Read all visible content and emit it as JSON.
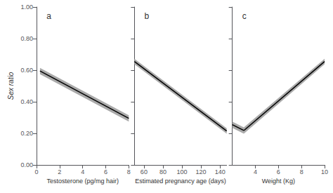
{
  "chart_data": [
    {
      "type": "line",
      "title": "a",
      "xlabel": "Testosterone (pg/mg hair)",
      "ylabel": "Sex ratio",
      "xlim": [
        0,
        8
      ],
      "xticks": [
        0,
        2,
        4,
        6,
        8
      ],
      "ylim": [
        0.0,
        1.0
      ],
      "yticks": [
        {
          "value": 0.0,
          "label": "0.00"
        },
        {
          "value": 0.2,
          "label": "0.20"
        },
        {
          "value": 0.4,
          "label": "0.40"
        },
        {
          "value": 0.6,
          "label": "0.60"
        },
        {
          "value": 0.8,
          "label": "0.80"
        },
        {
          "value": 1.0,
          "label": "1.00"
        }
      ],
      "grid": false,
      "series": [
        {
          "type": "band",
          "color": "#aaaaaa",
          "x": [
            0.3,
            8
          ],
          "upper": [
            0.615,
            0.315
          ],
          "lower": [
            0.575,
            0.275
          ]
        },
        {
          "type": "line",
          "color": "black",
          "x": [
            0.3,
            8
          ],
          "values": [
            0.595,
            0.295
          ]
        }
      ]
    },
    {
      "type": "line",
      "title": "b",
      "xlabel": "Estimated pregnancy age (days)",
      "xlim": [
        50,
        147
      ],
      "xticks": [
        60,
        80,
        100,
        120,
        140
      ],
      "ylim": [
        0.0,
        1.0
      ],
      "yticks": [
        0.0,
        0.2,
        0.4,
        0.6,
        0.8,
        1.0
      ],
      "tick_labels": "x",
      "grid": false,
      "series": [
        {
          "type": "band",
          "color": "#aaaaaa",
          "x": [
            50,
            147
          ],
          "upper": [
            0.672,
            0.232
          ],
          "lower": [
            0.638,
            0.198
          ]
        },
        {
          "type": "line",
          "color": "black",
          "x": [
            50,
            147
          ],
          "values": [
            0.655,
            0.215
          ]
        }
      ]
    },
    {
      "type": "line",
      "title": "c",
      "xlabel": "Weight (Kg)",
      "xlim": [
        2,
        10
      ],
      "xticks": [
        4,
        6,
        8,
        10
      ],
      "ylim": [
        0.0,
        1.0
      ],
      "yticks": [
        0.0,
        0.2,
        0.4,
        0.6,
        0.8,
        1.0
      ],
      "tick_labels": "x",
      "grid": false,
      "series": [
        {
          "type": "band",
          "color": "#aaaaaa",
          "x": [
            2.0,
            3.0
          ],
          "upper": [
            0.275,
            0.238
          ],
          "lower": [
            0.235,
            0.198
          ]
        },
        {
          "type": "band",
          "color": "#aaaaaa",
          "x": [
            3.0,
            10.0
          ],
          "upper": [
            0.238,
            0.672
          ],
          "lower": [
            0.198,
            0.638
          ]
        },
        {
          "type": "line",
          "color": "black",
          "x": [
            2.0,
            3.0
          ],
          "values": [
            0.255,
            0.218
          ]
        },
        {
          "type": "line",
          "color": "black",
          "x": [
            3.0,
            10.0
          ],
          "values": [
            0.218,
            0.655
          ]
        }
      ]
    }
  ]
}
